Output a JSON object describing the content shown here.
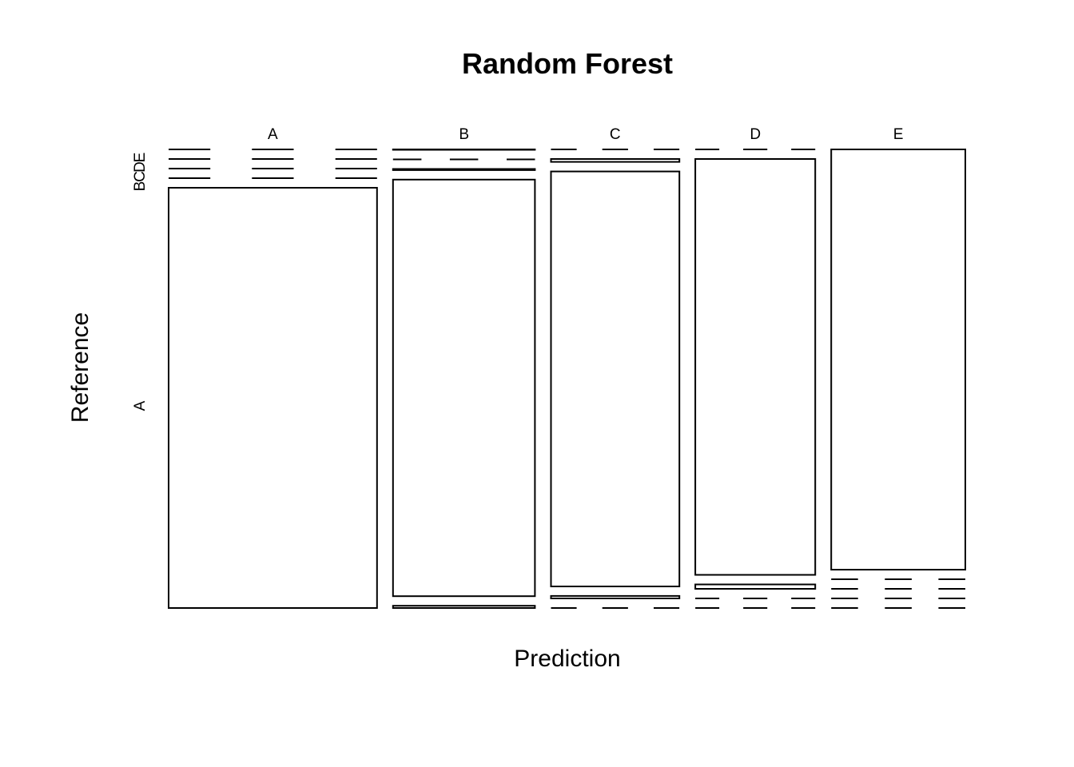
{
  "chart_data": {
    "type": "mosaic",
    "title": "Random Forest",
    "xlabel": "Prediction",
    "ylabel": "Reference",
    "x_categories": [
      "A",
      "B",
      "C",
      "D",
      "E"
    ],
    "y_categories": [
      "A",
      "B",
      "C",
      "D",
      "E"
    ],
    "y_tick_labels": [
      "A",
      "B",
      "C",
      "D",
      "E"
    ],
    "column_totals": [
      1674,
      1140,
      1031,
      963,
      1077
    ],
    "matrix_reference_by_prediction": [
      [
        1674,
        6,
        0,
        0,
        0
      ],
      [
        0,
        1130,
        6,
        0,
        0
      ],
      [
        0,
        3,
        1018,
        10,
        0
      ],
      [
        0,
        0,
        7,
        953,
        0
      ],
      [
        0,
        1,
        0,
        0,
        1077
      ]
    ],
    "colors": {
      "line": "#000000",
      "fill": "#ffffff"
    },
    "grid": false
  }
}
